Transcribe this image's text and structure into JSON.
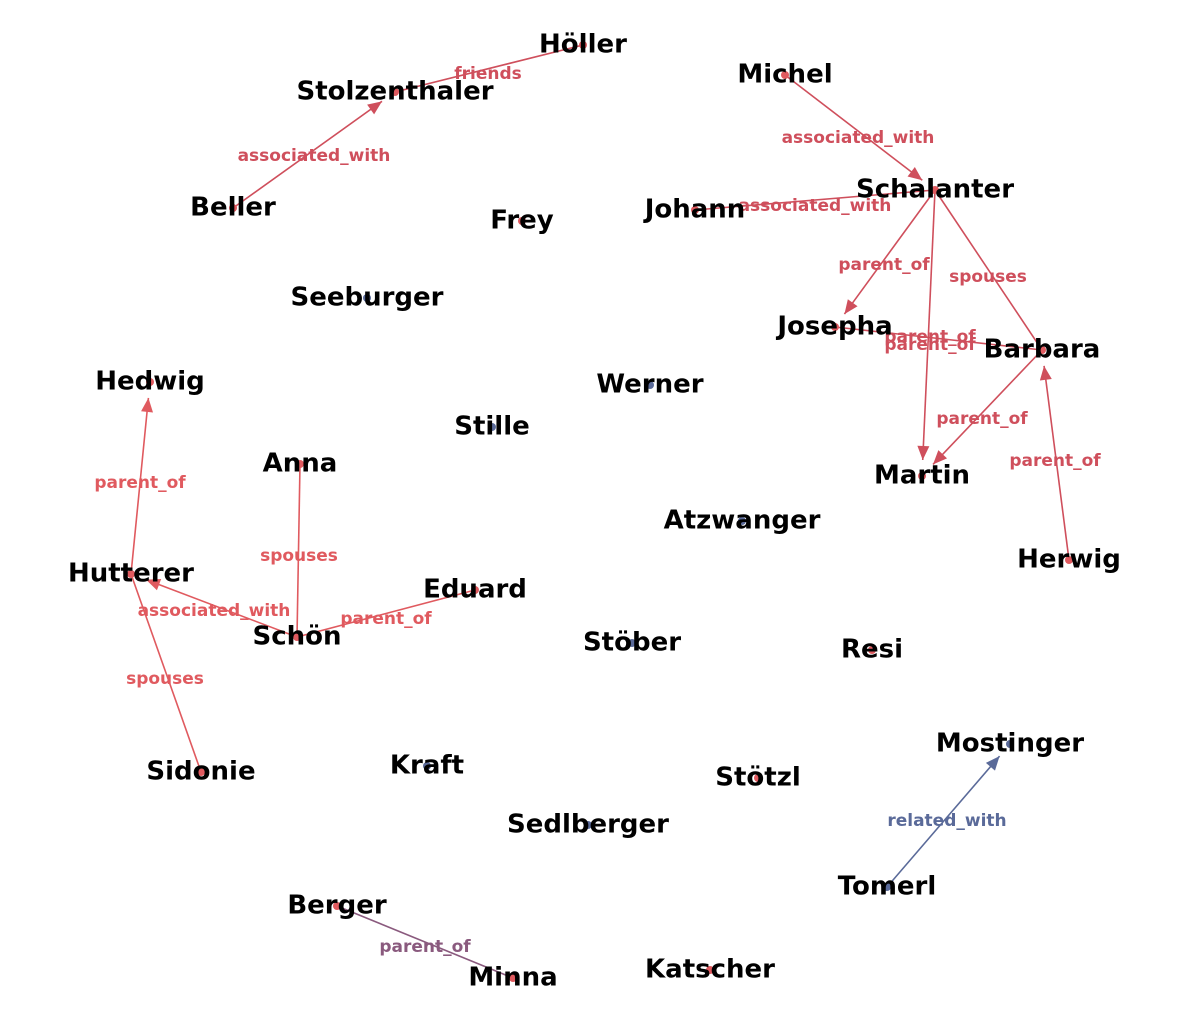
{
  "colors": {
    "red": "#e05a5f",
    "red_dark": "#cf4f5c",
    "blue": "#5a6a99",
    "purple": "#8a5a7e"
  },
  "nodes": [
    {
      "id": "holler",
      "label": "Höller",
      "dot": "red"
    },
    {
      "id": "stolzenthaler",
      "label": "Stolzenthaler",
      "dot": "red"
    },
    {
      "id": "michel",
      "label": "Michel",
      "dot": "red"
    },
    {
      "id": "beller",
      "label": "Beller",
      "dot": "red"
    },
    {
      "id": "frey",
      "label": "Frey",
      "dot": "red"
    },
    {
      "id": "johann",
      "label": "Johann",
      "dot": "red"
    },
    {
      "id": "schalanter",
      "label": "Schalanter",
      "dot": "red"
    },
    {
      "id": "seeburger",
      "label": "Seeburger",
      "dot": "blue"
    },
    {
      "id": "josepha",
      "label": "Josepha",
      "dot": "red"
    },
    {
      "id": "barbara",
      "label": "Barbara",
      "dot": "red"
    },
    {
      "id": "hedwig",
      "label": "Hedwig",
      "dot": "red"
    },
    {
      "id": "werner",
      "label": "Werner",
      "dot": "blue"
    },
    {
      "id": "stille",
      "label": "Stille",
      "dot": "blue"
    },
    {
      "id": "anna",
      "label": "Anna",
      "dot": "red"
    },
    {
      "id": "martin",
      "label": "Martin",
      "dot": "red"
    },
    {
      "id": "atzwanger",
      "label": "Atzwanger",
      "dot": "blue"
    },
    {
      "id": "herwig",
      "label": "Herwig",
      "dot": "red"
    },
    {
      "id": "hutterer",
      "label": "Hutterer",
      "dot": "red"
    },
    {
      "id": "eduard",
      "label": "Eduard",
      "dot": "red"
    },
    {
      "id": "schon",
      "label": "Schön",
      "dot": "red"
    },
    {
      "id": "stober",
      "label": "Stöber",
      "dot": "blue"
    },
    {
      "id": "resi",
      "label": "Resi",
      "dot": "red"
    },
    {
      "id": "mostinger",
      "label": "Mostinger",
      "dot": "blue"
    },
    {
      "id": "sidonie",
      "label": "Sidonie",
      "dot": "red"
    },
    {
      "id": "kraft",
      "label": "Kraft",
      "dot": "blue"
    },
    {
      "id": "stotzl",
      "label": "Stötzl",
      "dot": "red"
    },
    {
      "id": "sedlberger",
      "label": "Sedlberger",
      "dot": "blue"
    },
    {
      "id": "tomerl",
      "label": "Tomerl",
      "dot": "blue"
    },
    {
      "id": "berger",
      "label": "Berger",
      "dot": "red"
    },
    {
      "id": "minna",
      "label": "Minna",
      "dot": "red"
    },
    {
      "id": "katscher",
      "label": "Katscher",
      "dot": "red"
    }
  ],
  "edges": [
    {
      "source": "stolzenthaler",
      "target": "holler",
      "label": "friends",
      "color": "red_dark",
      "arrow": false
    },
    {
      "source": "beller",
      "target": "stolzenthaler",
      "label": "associated_with",
      "color": "red_dark",
      "arrow": true
    },
    {
      "source": "michel",
      "target": "schalanter",
      "label": "associated_with",
      "color": "red_dark",
      "arrow": true
    },
    {
      "source": "johann",
      "target": "schalanter",
      "label": "associated_with",
      "color": "red_dark",
      "arrow": false
    },
    {
      "source": "schalanter",
      "target": "josepha",
      "label": "parent_of",
      "color": "red_dark",
      "arrow": true
    },
    {
      "source": "schalanter",
      "target": "barbara",
      "label": "spouses",
      "color": "red_dark",
      "arrow": false
    },
    {
      "source": "schalanter",
      "target": "martin",
      "label": "parent_of",
      "color": "red_dark",
      "arrow": true
    },
    {
      "source": "barbara",
      "target": "martin",
      "label": "parent_of",
      "color": "red_dark",
      "arrow": true
    },
    {
      "source": "josepha",
      "target": "barbara",
      "label": "parent_of",
      "color": "red_dark",
      "arrow": false
    },
    {
      "source": "herwig",
      "target": "barbara",
      "label": "parent_of",
      "color": "red_dark",
      "arrow": true
    },
    {
      "source": "hutterer",
      "target": "hedwig",
      "label": "parent_of",
      "color": "red",
      "arrow": true
    },
    {
      "source": "anna",
      "target": "schon",
      "label": "spouses",
      "color": "red",
      "arrow": false
    },
    {
      "source": "schon",
      "target": "hutterer",
      "label": "associated_with",
      "color": "red",
      "arrow": true
    },
    {
      "source": "schon",
      "target": "eduard",
      "label": "parent_of",
      "color": "red",
      "arrow": false
    },
    {
      "source": "sidonie",
      "target": "hutterer",
      "label": "spouses",
      "color": "red",
      "arrow": false
    },
    {
      "source": "tomerl",
      "target": "mostinger",
      "label": "related_with",
      "color": "blue",
      "arrow": true
    },
    {
      "source": "berger",
      "target": "minna",
      "label": "parent_of",
      "color": "purple",
      "arrow": false
    }
  ]
}
